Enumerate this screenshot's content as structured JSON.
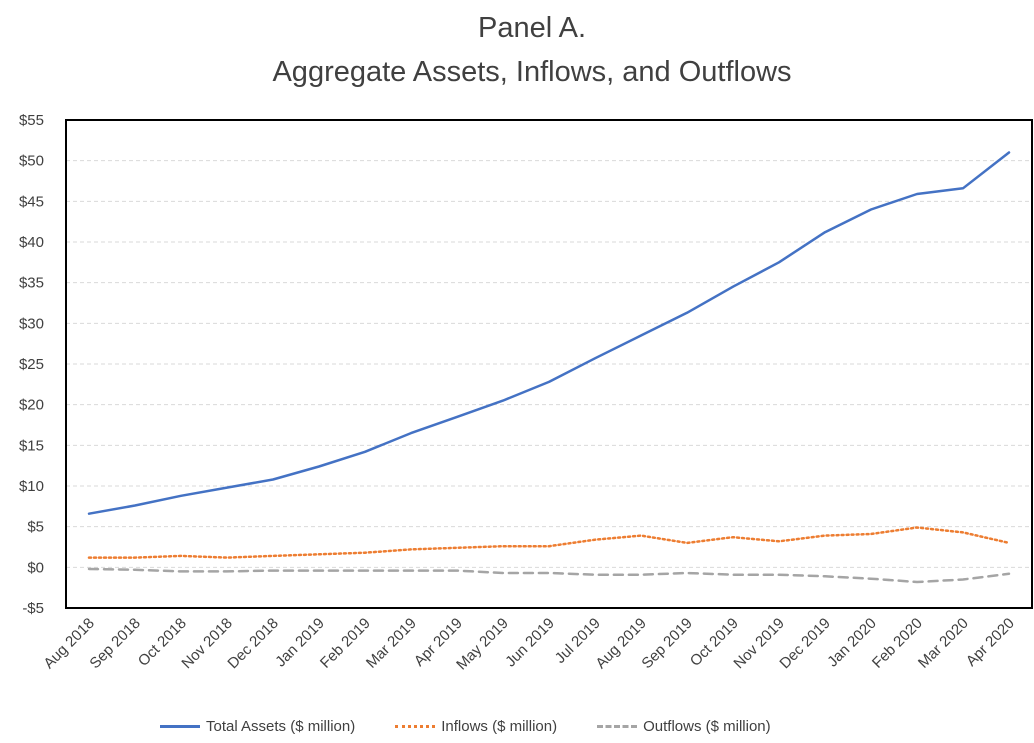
{
  "chart_data": {
    "type": "line",
    "title": "Panel A.",
    "subtitle": "Aggregate Assets, Inflows, and Outflows",
    "xlabel": "",
    "ylabel": "",
    "categories": [
      "Aug 2018",
      "Sep 2018",
      "Oct 2018",
      "Nov 2018",
      "Dec 2018",
      "Jan 2019",
      "Feb 2019",
      "Mar 2019",
      "Apr 2019",
      "May 2019",
      "Jun 2019",
      "Jul 2019",
      "Aug 2019",
      "Sep 2019",
      "Oct 2019",
      "Nov 2019",
      "Dec 2019",
      "Jan 2020",
      "Feb 2020",
      "Mar 2020",
      "Apr 2020"
    ],
    "ylim": [
      -5,
      55
    ],
    "yticks": [
      -5,
      0,
      5,
      10,
      15,
      20,
      25,
      30,
      35,
      40,
      45,
      50,
      55
    ],
    "ytick_labels": [
      "-$5",
      "$0",
      "$5",
      "$10",
      "$15",
      "$20",
      "$25",
      "$30",
      "$35",
      "$40",
      "$45",
      "$50",
      "$55"
    ],
    "grid": "horizontal dashed",
    "legend_position": "bottom",
    "series": [
      {
        "name": "Total Assets ($ million)",
        "color": "#4472C4",
        "dash": "solid",
        "values": [
          6.6,
          7.6,
          8.8,
          9.8,
          10.8,
          12.4,
          14.2,
          16.5,
          18.5,
          20.5,
          22.8,
          25.7,
          28.5,
          31.3,
          34.5,
          37.5,
          41.2,
          44.0,
          45.9,
          46.6,
          51.0
        ]
      },
      {
        "name": "Inflows ($ million)",
        "color": "#ED7D31",
        "dash": "dotted",
        "values": [
          1.2,
          1.2,
          1.4,
          1.2,
          1.4,
          1.6,
          1.8,
          2.2,
          2.4,
          2.6,
          2.6,
          3.4,
          3.9,
          3.0,
          3.7,
          3.2,
          3.9,
          4.1,
          4.9,
          4.3,
          3.0
        ]
      },
      {
        "name": "Outflows ($ million)",
        "color": "#A5A5A5",
        "dash": "dashed",
        "values": [
          -0.2,
          -0.3,
          -0.5,
          -0.5,
          -0.4,
          -0.4,
          -0.4,
          -0.4,
          -0.4,
          -0.7,
          -0.7,
          -0.9,
          -0.9,
          -0.7,
          -0.9,
          -0.9,
          -1.1,
          -1.4,
          -1.8,
          -1.5,
          -0.8
        ]
      }
    ]
  }
}
